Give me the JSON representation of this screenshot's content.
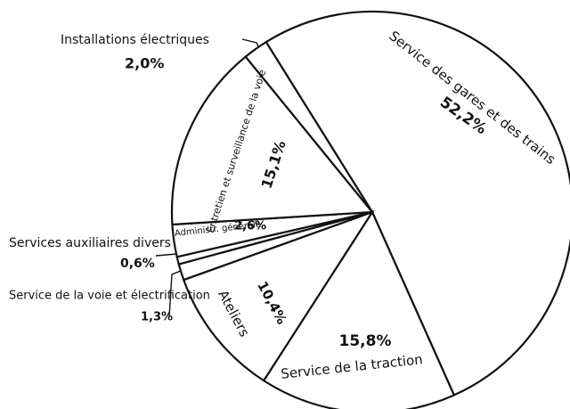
{
  "chart_data": {
    "type": "pie",
    "categories": [
      "Service des gares et des trains",
      "Service de la traction",
      "Ateliers",
      "Service de la voie et électrification",
      "Services auxiliaires divers",
      "Administr. générale",
      "Entretien et surveillance de la voie",
      "Installations électriques"
    ],
    "values": [
      52.2,
      15.8,
      10.4,
      1.3,
      0.6,
      2.6,
      15.1,
      2.0
    ],
    "value_labels": [
      "52,2%",
      "15,8%",
      "10,4%",
      "1,3%",
      "0,6%",
      "2,6%",
      "15,1%",
      "2,0%"
    ],
    "color": "#ffffff"
  }
}
